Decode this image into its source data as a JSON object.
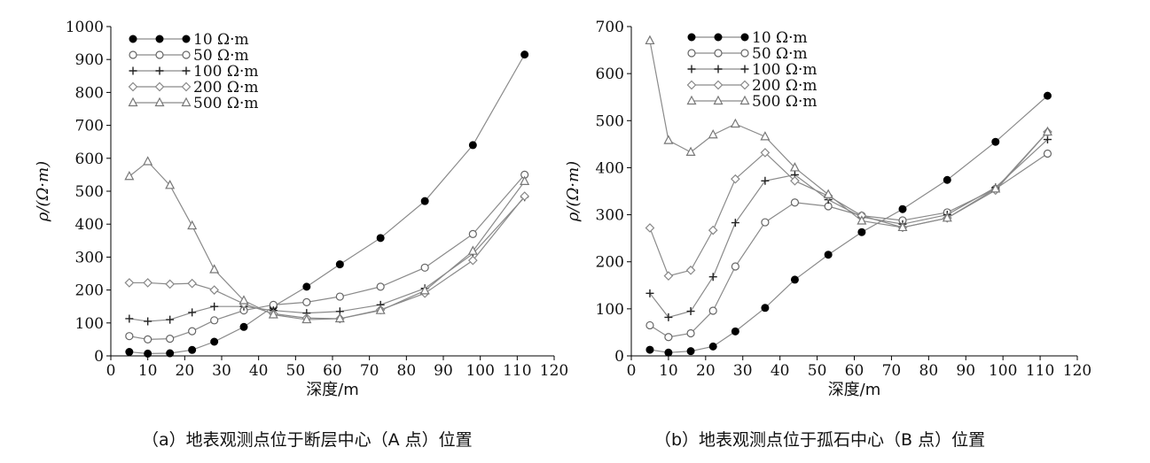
{
  "chart_data": [
    {
      "type": "line",
      "caption": "（a）地表观测点位于断层中心（A 点）位置",
      "xlabel": "深度/m",
      "ylabel": "ρ/(Ω·m)",
      "xlim": [
        0,
        120
      ],
      "ylim": [
        0,
        1000
      ],
      "xticks": [
        0,
        10,
        20,
        30,
        40,
        50,
        60,
        70,
        80,
        90,
        100,
        110,
        120
      ],
      "yticks": [
        0,
        100,
        200,
        300,
        400,
        500,
        600,
        700,
        800,
        900,
        1000
      ],
      "grid": false,
      "legend_position": "top-left",
      "x": [
        5,
        10,
        16,
        22,
        28,
        36,
        44,
        53,
        62,
        73,
        85,
        98,
        112
      ],
      "series": [
        {
          "name": "10 Ω·m",
          "marker": "filled-circle",
          "color": "#000000",
          "values": [
            12,
            7,
            8,
            18,
            43,
            88,
            150,
            210,
            278,
            358,
            470,
            640,
            915
          ]
        },
        {
          "name": "50 Ω·m",
          "marker": "open-circle",
          "color": "#666666",
          "values": [
            60,
            50,
            52,
            75,
            108,
            138,
            155,
            163,
            180,
            210,
            268,
            370,
            550
          ]
        },
        {
          "name": "100 Ω·m",
          "marker": "plus",
          "color": "#666666",
          "values": [
            113,
            105,
            110,
            132,
            150,
            150,
            138,
            130,
            135,
            155,
            205,
            310,
            482
          ]
        },
        {
          "name": "200 Ω·m",
          "marker": "open-diamond",
          "color": "#888888",
          "values": [
            222,
            222,
            218,
            220,
            200,
            158,
            128,
            115,
            113,
            140,
            190,
            290,
            485
          ]
        },
        {
          "name": "500 Ω·m",
          "marker": "open-triangle",
          "color": "#777777",
          "values": [
            545,
            590,
            518,
            395,
            262,
            168,
            125,
            110,
            113,
            138,
            198,
            318,
            530
          ]
        }
      ]
    },
    {
      "type": "line",
      "caption": "（b）地表观测点位于孤石中心（B 点）位置",
      "xlabel": "深度/m",
      "ylabel": "ρ/(Ω·m)",
      "xlim": [
        0,
        120
      ],
      "ylim": [
        0,
        700
      ],
      "xticks": [
        0,
        10,
        20,
        30,
        40,
        50,
        60,
        70,
        80,
        90,
        100,
        110,
        120
      ],
      "yticks": [
        0,
        100,
        200,
        300,
        400,
        500,
        600,
        700
      ],
      "grid": false,
      "legend_position": "top-left",
      "x": [
        5,
        10,
        16,
        22,
        28,
        36,
        44,
        53,
        62,
        73,
        85,
        98,
        112
      ],
      "series": [
        {
          "name": "10 Ω·m",
          "marker": "filled-circle",
          "color": "#000000",
          "values": [
            13,
            7,
            10,
            20,
            52,
            102,
            162,
            215,
            263,
            312,
            374,
            455,
            553
          ]
        },
        {
          "name": "50 Ω·m",
          "marker": "open-circle",
          "color": "#666666",
          "values": [
            65,
            40,
            48,
            96,
            190,
            284,
            326,
            318,
            298,
            288,
            305,
            355,
            430
          ]
        },
        {
          "name": "100 Ω·m",
          "marker": "plus",
          "color": "#666666",
          "values": [
            133,
            82,
            95,
            168,
            283,
            372,
            385,
            332,
            295,
            280,
            300,
            358,
            460
          ]
        },
        {
          "name": "200 Ω·m",
          "marker": "open-diamond",
          "color": "#888888",
          "values": [
            272,
            170,
            182,
            267,
            376,
            432,
            372,
            340,
            298,
            273,
            293,
            352,
            476
          ]
        },
        {
          "name": "500 Ω·m",
          "marker": "open-triangle",
          "color": "#777777",
          "values": [
            670,
            458,
            433,
            470,
            493,
            466,
            400,
            343,
            287,
            273,
            293,
            355,
            476
          ]
        }
      ]
    }
  ]
}
